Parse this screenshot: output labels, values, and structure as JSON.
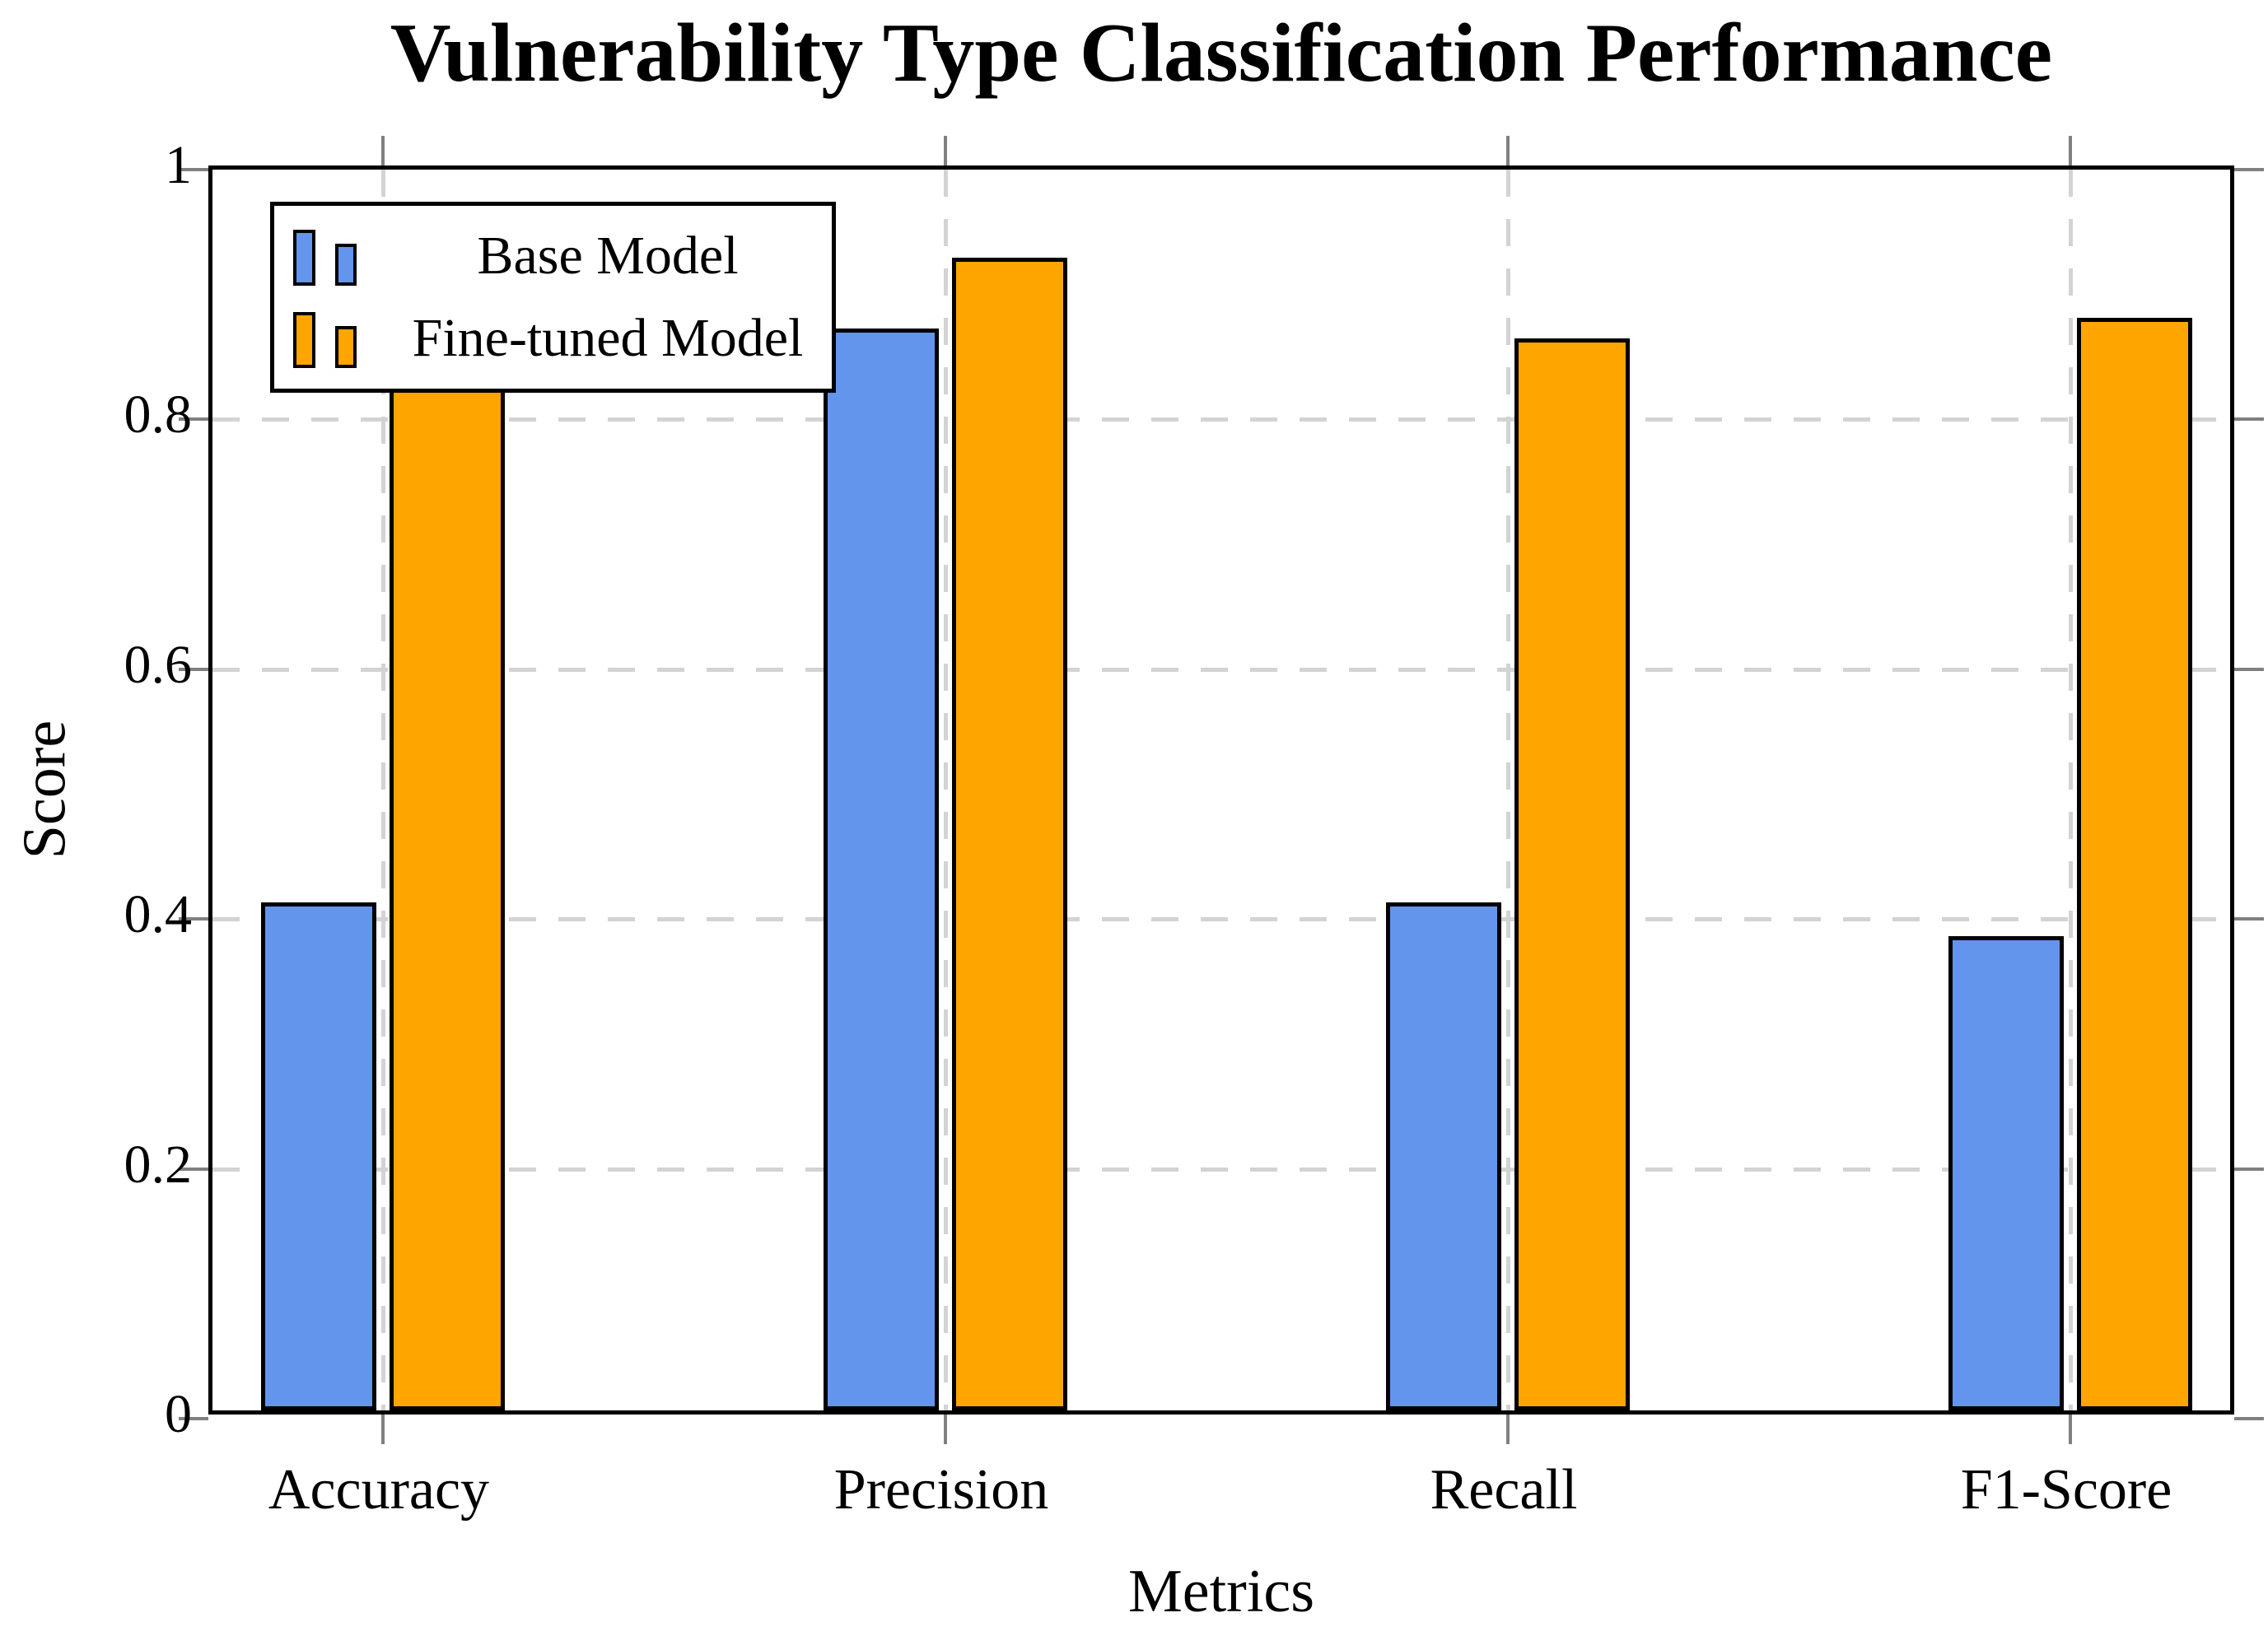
{
  "chart_data": {
    "type": "bar",
    "title": "Vulnerability Type Classification Performance",
    "xlabel": "Metrics",
    "ylabel": "Score",
    "categories": [
      "Accuracy",
      "Precision",
      "Recall",
      "F1-Score"
    ],
    "series": [
      {
        "name": "Base Model",
        "color": "#6495ED",
        "values": [
          0.407,
          0.866,
          0.407,
          0.38
        ]
      },
      {
        "name": "Fine-tuned Model",
        "color": "#FFA500",
        "values": [
          0.858,
          0.923,
          0.858,
          0.875
        ]
      }
    ],
    "ylim": [
      0,
      1
    ],
    "yticks": {
      "values": [
        0,
        0.2,
        0.4,
        0.6,
        0.8,
        1
      ],
      "labels": [
        "0",
        "0.2",
        "0.4",
        "0.6",
        "0.8",
        "1"
      ]
    },
    "grid": {
      "horizontal": true,
      "vertical": true,
      "style": "dashed"
    },
    "legend_position": "top-left",
    "colors": {
      "background": "#FFFFFF",
      "axis_frame": "#000000",
      "bar_outline": "#000000",
      "gridline": "#D3D3D3",
      "tick_mark": "#808080",
      "text": "#000000"
    }
  }
}
